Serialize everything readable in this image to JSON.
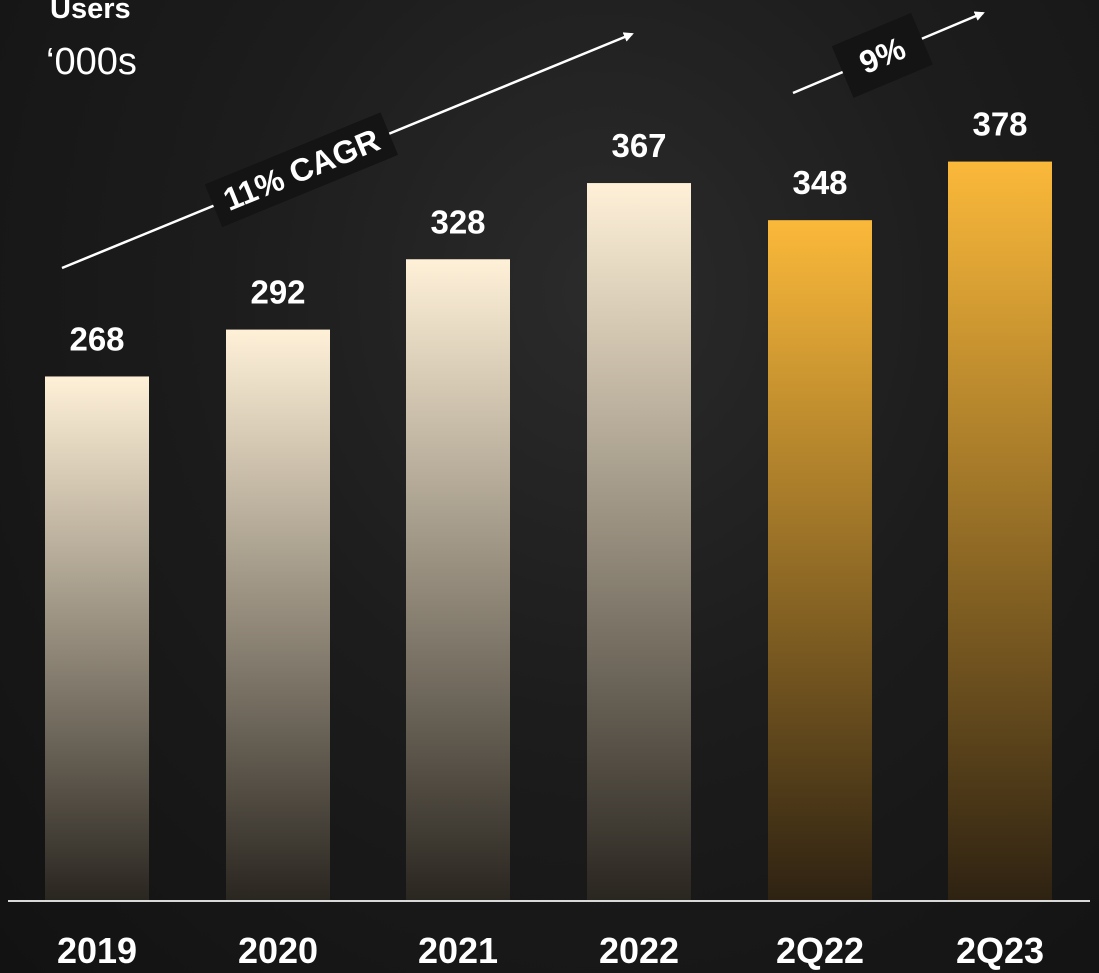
{
  "chart_data": {
    "type": "bar",
    "title": "Users",
    "subtitle": "‘000s",
    "categories": [
      "2019",
      "2020",
      "2021",
      "2022",
      "2Q22",
      "2Q23"
    ],
    "values": [
      268,
      292,
      328,
      367,
      348,
      378
    ],
    "bar_groups": [
      "annual",
      "annual",
      "annual",
      "annual",
      "quarterly",
      "quarterly"
    ],
    "annotations": [
      {
        "text": "11% CAGR",
        "from": "2019",
        "to": "2022"
      },
      {
        "text": "9%",
        "from": "2Q22",
        "to": "2Q23"
      }
    ],
    "ylim": [
      0,
      400
    ],
    "grid": false,
    "legend": "none",
    "colors": {
      "annual_top": "#fff1d8",
      "annual_bottom": "#2a2620",
      "quarterly_top": "#fbb93a",
      "quarterly_bottom": "#2e2212",
      "axis_line": "#d9d9d9",
      "text": "#ffffff",
      "annotation_box": "#141414"
    }
  }
}
